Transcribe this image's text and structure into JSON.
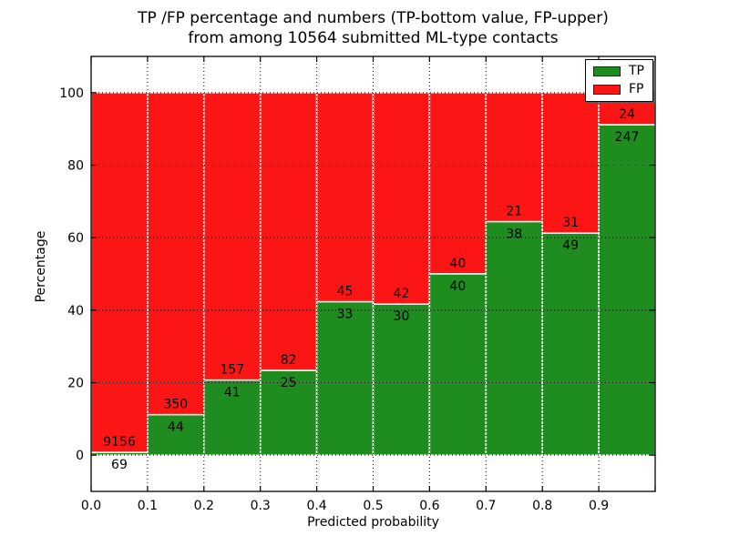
{
  "title": {
    "line1": "TP /FP percentage and numbers (TP-bottom value, FP-upper)",
    "line2": "from among 10564 submitted ML-type contacts"
  },
  "legend": {
    "items": [
      {
        "label": "TP",
        "color": "#1e8c1e"
      },
      {
        "label": "FP",
        "color": "#fc1515"
      }
    ]
  },
  "chart_data": {
    "type": "bar",
    "stacked": true,
    "normalized": "each bin scaled to 100%",
    "title": "TP /FP percentage and numbers (TP-bottom value, FP-upper) from among 10564 submitted ML-type contacts",
    "total_contacts": 10564,
    "xlabel": "Predicted probability",
    "ylabel": "Percentage",
    "bin_edges": [
      0.0,
      0.1,
      0.2,
      0.3,
      0.4,
      0.5,
      0.6,
      0.7,
      0.8,
      0.9,
      1.0
    ],
    "x_tick_labels": [
      "0.0",
      "0.1",
      "0.2",
      "0.3",
      "0.4",
      "0.5",
      "0.6",
      "0.7",
      "0.8",
      "0.9"
    ],
    "y_ticks": [
      0,
      20,
      40,
      60,
      80,
      100
    ],
    "xlim": [
      0.0,
      1.0
    ],
    "ylim": [
      -10,
      110
    ],
    "grid": {
      "style": "dotted",
      "color": "#000000",
      "on_top": true
    },
    "legend_position": "upper right",
    "bar_edge_color": "#ffffff",
    "series": [
      {
        "name": "TP",
        "color": "#1e8c1e",
        "counts": [
          69,
          44,
          41,
          25,
          33,
          30,
          40,
          38,
          49,
          247
        ]
      },
      {
        "name": "FP",
        "color": "#fc1515",
        "counts": [
          9156,
          350,
          157,
          82,
          45,
          42,
          40,
          21,
          31,
          24
        ]
      }
    ],
    "label_convention": "TP count printed below segment boundary, FP count above"
  }
}
